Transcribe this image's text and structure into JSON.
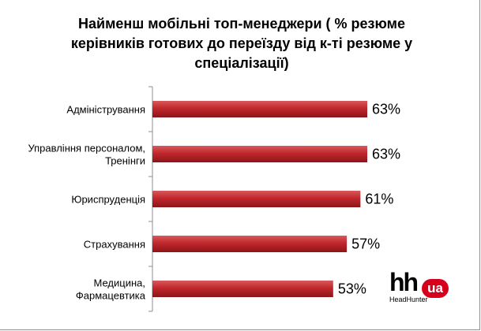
{
  "chart_data": {
    "type": "bar",
    "orientation": "horizontal",
    "title": "Найменш мобільні топ-менеджери ( % резюме керівників готових до переїзду від к-ті резюме у спеціалізації)",
    "title_lines": [
      "Найменш мобільні топ-менеджери ( % резюме",
      "керівників  готових до переїзду від к-ті резюме у",
      "спеціалізації)"
    ],
    "categories": [
      [
        "Адміністрування"
      ],
      [
        "Управління персоналом,",
        "Тренінги"
      ],
      [
        "Юриспруденція"
      ],
      [
        "Страхування"
      ],
      [
        "Медицина,",
        "Фармацевтика"
      ]
    ],
    "values": [
      63,
      63,
      61,
      57,
      53
    ],
    "value_labels": [
      "63%",
      "63%",
      "61%",
      "57%",
      "53%"
    ],
    "unit": "%",
    "bar_color": "#c0282d",
    "xlim": [
      0,
      63
    ],
    "grid": false,
    "legend": "none"
  },
  "logo": {
    "main": "hh",
    "badge": "ua",
    "subtitle": "HeadHunter",
    "badge_color": "#d6001c"
  }
}
